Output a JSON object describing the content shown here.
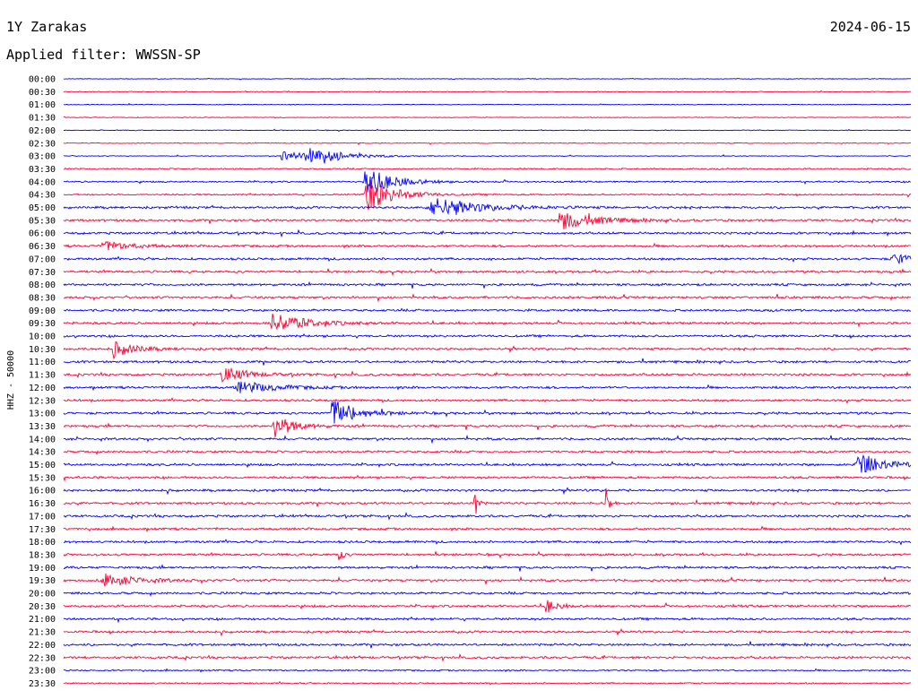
{
  "header": {
    "station": "1Y Zarakas",
    "date": "2024-06-15",
    "filter": "Applied filter: WWSSN-SP"
  },
  "chart_data": {
    "type": "line",
    "title": "1Y Zarakas",
    "subtitle": "Applied filter: WWSSN-SP",
    "ylabel": "HHZ - 50000",
    "xlabel": "",
    "colors": [
      "#0000ff",
      "#ff0033"
    ],
    "grid": false,
    "legend": "none",
    "rows": [
      "00:00",
      "00:30",
      "01:00",
      "01:30",
      "02:00",
      "02:30",
      "03:00",
      "03:30",
      "04:00",
      "04:30",
      "05:00",
      "05:30",
      "06:00",
      "06:30",
      "07:00",
      "07:30",
      "08:00",
      "08:30",
      "09:00",
      "09:30",
      "10:00",
      "10:30",
      "11:00",
      "11:30",
      "12:00",
      "12:30",
      "13:00",
      "13:30",
      "14:00",
      "14:30",
      "15:00",
      "15:30",
      "16:00",
      "16:30",
      "17:00",
      "17:30",
      "18:00",
      "18:30",
      "19:00",
      "19:30",
      "20:00",
      "20:30",
      "21:00",
      "21:30",
      "22:00",
      "22:30",
      "23:00",
      "23:30"
    ],
    "noise_level": [
      1,
      1,
      1,
      1,
      1,
      1,
      1,
      2,
      2,
      2,
      3,
      3,
      3,
      3,
      3,
      3,
      3,
      3,
      3,
      3,
      3,
      3,
      3,
      3,
      3,
      3,
      3,
      3,
      3,
      3,
      3,
      3,
      3,
      3,
      3,
      3,
      3,
      3,
      3,
      3,
      3,
      3,
      3,
      3,
      3,
      3,
      2,
      2
    ],
    "events": [
      {
        "row": "03:00",
        "x": 0.26,
        "amp": 7,
        "dur": 0.02
      },
      {
        "row": "03:00",
        "x": 0.29,
        "amp": 11,
        "dur": 0.035
      },
      {
        "row": "04:00",
        "x": 0.36,
        "amp": 14,
        "dur": 0.03
      },
      {
        "row": "04:30",
        "x": 0.36,
        "amp": 18,
        "dur": 0.03
      },
      {
        "row": "05:00",
        "x": 0.44,
        "amp": 10,
        "dur": 0.05
      },
      {
        "row": "05:30",
        "x": 0.59,
        "amp": 9,
        "dur": 0.04
      },
      {
        "row": "06:30",
        "x": 0.05,
        "amp": 5,
        "dur": 0.03
      },
      {
        "row": "07:00",
        "x": 0.98,
        "amp": 6,
        "dur": 0.02
      },
      {
        "row": "09:30",
        "x": 0.25,
        "amp": 11,
        "dur": 0.035
      },
      {
        "row": "10:30",
        "x": 0.06,
        "amp": 8,
        "dur": 0.025
      },
      {
        "row": "11:30",
        "x": 0.19,
        "amp": 9,
        "dur": 0.025
      },
      {
        "row": "12:00",
        "x": 0.21,
        "amp": 6,
        "dur": 0.04
      },
      {
        "row": "13:00",
        "x": 0.32,
        "amp": 15,
        "dur": 0.025
      },
      {
        "row": "13:30",
        "x": 0.25,
        "amp": 13,
        "dur": 0.02
      },
      {
        "row": "15:00",
        "x": 0.94,
        "amp": 15,
        "dur": 0.025
      },
      {
        "row": "16:30",
        "x": 0.485,
        "amp": 20,
        "dur": 0.003
      },
      {
        "row": "16:30",
        "x": 0.64,
        "amp": 28,
        "dur": 0.003
      },
      {
        "row": "18:30",
        "x": 0.325,
        "amp": 9,
        "dur": 0.004
      },
      {
        "row": "19:30",
        "x": 0.05,
        "amp": 7,
        "dur": 0.035
      },
      {
        "row": "20:30",
        "x": 0.57,
        "amp": 8,
        "dur": 0.01
      }
    ]
  }
}
